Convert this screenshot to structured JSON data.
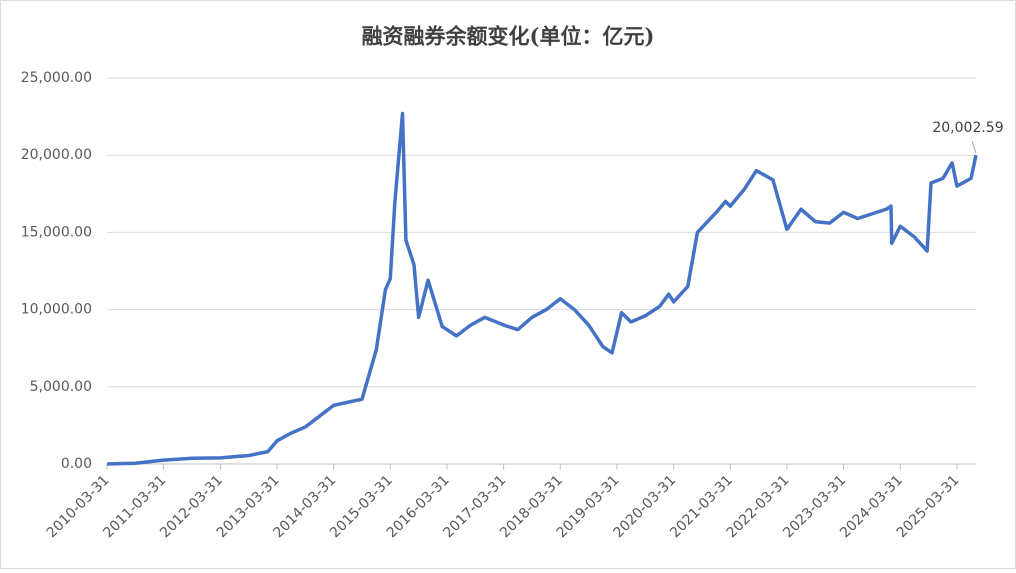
{
  "chart_data": {
    "type": "line",
    "title": "融资融券余额变化(单位：亿元)",
    "x": [
      "2010-03-31",
      "2010-09-30",
      "2011-03-31",
      "2011-09-30",
      "2012-03-31",
      "2012-09-30",
      "2013-01-31",
      "2013-03-31",
      "2013-06-30",
      "2013-09-30",
      "2014-03-31",
      "2014-06-30",
      "2014-09-30",
      "2014-12-31",
      "2015-02-28",
      "2015-03-31",
      "2015-04-30",
      "2015-06-18",
      "2015-07-10",
      "2015-08-31",
      "2015-09-30",
      "2015-11-30",
      "2016-02-29",
      "2016-05-31",
      "2016-08-31",
      "2016-11-30",
      "2017-03-31",
      "2017-06-30",
      "2017-09-30",
      "2017-12-31",
      "2018-03-31",
      "2018-06-30",
      "2018-09-30",
      "2018-12-31",
      "2019-02-28",
      "2019-04-30",
      "2019-06-30",
      "2019-09-30",
      "2019-12-31",
      "2020-02-28",
      "2020-03-31",
      "2020-06-30",
      "2020-08-31",
      "2020-12-31",
      "2021-02-28",
      "2021-03-31",
      "2021-06-30",
      "2021-09-15",
      "2021-12-31",
      "2022-03-31",
      "2022-06-30",
      "2022-09-30",
      "2022-12-31",
      "2023-03-31",
      "2023-06-30",
      "2023-09-30",
      "2023-12-31",
      "2024-01-31",
      "2024-02-05",
      "2024-03-31",
      "2024-06-30",
      "2024-09-20",
      "2024-10-15",
      "2024-12-31",
      "2025-02-28",
      "2025-03-31",
      "2025-06-30",
      "2025-08-01"
    ],
    "values": [
      0,
      50,
      250,
      370,
      400,
      550,
      800,
      1500,
      2000,
      2400,
      3800,
      4000,
      4200,
      7400,
      11300,
      12000,
      17000,
      22700,
      14500,
      12900,
      9500,
      11900,
      8900,
      8300,
      9000,
      9500,
      9000,
      8700,
      9500,
      10000,
      10700,
      10000,
      9000,
      7600,
      7200,
      9800,
      9200,
      9600,
      10200,
      11000,
      10500,
      11500,
      15000,
      16300,
      17000,
      16700,
      17800,
      19000,
      18400,
      15200,
      16500,
      15700,
      15600,
      16300,
      15900,
      16200,
      16500,
      16700,
      14300,
      15400,
      14700,
      13800,
      18200,
      18500,
      19500,
      18000,
      18500,
      20002.59
    ],
    "value_labels": [
      null,
      null,
      null,
      null,
      null,
      null,
      null,
      null,
      null,
      null,
      null,
      null,
      null,
      null,
      null,
      null,
      null,
      null,
      null,
      null,
      null,
      null,
      null,
      null,
      null,
      null,
      null,
      null,
      null,
      null,
      null,
      null,
      null,
      null,
      null,
      null,
      null,
      null,
      null,
      null,
      null,
      null,
      null,
      null,
      null,
      null,
      null,
      null,
      null,
      null,
      null,
      null,
      null,
      null,
      null,
      null,
      null,
      null,
      null,
      null,
      null,
      null,
      null,
      null,
      null,
      null,
      null,
      "20,002.59"
    ],
    "color": "#4472c4",
    "xlim": [
      "2010-03-31",
      "2025-08-01"
    ],
    "xticks": [
      "2010-03-31",
      "2011-03-31",
      "2012-03-31",
      "2013-03-31",
      "2014-03-31",
      "2015-03-31",
      "2016-03-31",
      "2017-03-31",
      "2018-03-31",
      "2019-03-31",
      "2020-03-31",
      "2021-03-31",
      "2022-03-31",
      "2023-03-31",
      "2024-03-31",
      "2025-03-31"
    ],
    "ylim": [
      0,
      25000
    ],
    "yticks": [
      {
        "value": 0,
        "label": "0.00"
      },
      {
        "value": 5000,
        "label": "5,000.00"
      },
      {
        "value": 10000,
        "label": "10,000.00"
      },
      {
        "value": 15000,
        "label": "15,000.00"
      },
      {
        "value": 20000,
        "label": "20,000.00"
      },
      {
        "value": 25000,
        "label": "25,000.00"
      }
    ],
    "grid": true
  }
}
